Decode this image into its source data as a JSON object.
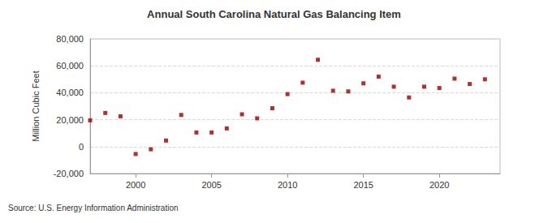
{
  "chart_data": {
    "type": "scatter",
    "title": "Annual South Carolina Natural Gas Balancing Item",
    "y_label": "Million Cubic Feet",
    "source": "Source: U.S. Energy Information Administration",
    "x": [
      1997,
      1998,
      1999,
      2000,
      2001,
      2002,
      2003,
      2004,
      2005,
      2006,
      2007,
      2008,
      2009,
      2010,
      2011,
      2012,
      2013,
      2014,
      2015,
      2016,
      2017,
      2018,
      2019,
      2020,
      2021,
      2022,
      2023
    ],
    "values": [
      19500,
      25000,
      22500,
      -5500,
      -2000,
      4500,
      23500,
      10500,
      10500,
      13500,
      24000,
      21000,
      28500,
      39000,
      47500,
      64500,
      41500,
      41000,
      47000,
      52000,
      44500,
      36500,
      44500,
      43500,
      50500,
      46500,
      50000
    ],
    "color": "#990000",
    "marker": "rect",
    "xlim": [
      1997,
      2024
    ],
    "xticks": [
      2000,
      2005,
      2010,
      2015,
      2020
    ],
    "ylim": [
      -20000,
      80000
    ],
    "yticks": [
      {
        "value": -20000,
        "label": "-20,000"
      },
      0,
      {
        "value": 20000,
        "label": "20,000"
      },
      {
        "value": 40000,
        "label": "40,000"
      },
      {
        "value": 60000,
        "label": "60,000"
      },
      {
        "value": 80000,
        "label": "80,000"
      }
    ],
    "grid": true
  }
}
